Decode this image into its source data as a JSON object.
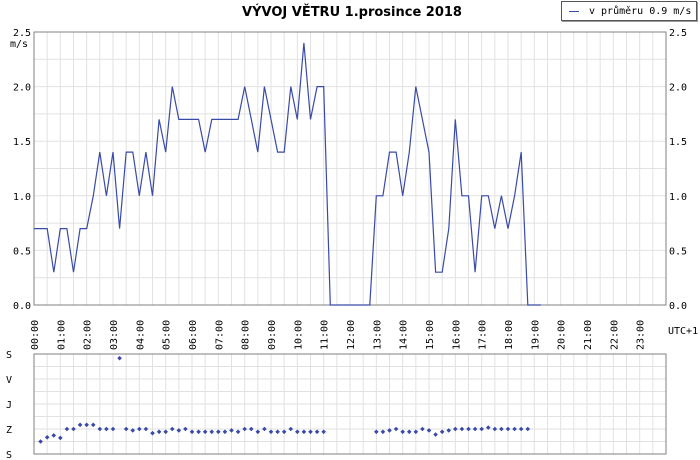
{
  "chart_data": [
    {
      "type": "line",
      "title": "VÝVOJ VĚTRU  1.prosince 2018",
      "ylabel": "m/s",
      "xlabel": "UTC+1",
      "ylim": [
        0,
        2.5
      ],
      "yticks": [
        "0.0",
        "0.5",
        "1.0",
        "1.5",
        "2.0",
        "2.5"
      ],
      "grid": true,
      "legend": "top-right",
      "categories": [
        "00:00",
        "01:00",
        "02:00",
        "03:00",
        "04:00",
        "05:00",
        "06:00",
        "07:00",
        "08:00",
        "09:00",
        "10:00",
        "11:00",
        "12:00",
        "13:00",
        "14:00",
        "15:00",
        "16:00",
        "17:00",
        "18:00",
        "19:00",
        "20:00",
        "21:00",
        "22:00",
        "23:00"
      ],
      "series": [
        {
          "name": "v průměru 0.9 m/s",
          "color": "#3a4aa8",
          "x": [
            0,
            0.5,
            0.75,
            1,
            1.25,
            1.5,
            1.75,
            2,
            2.25,
            2.5,
            2.75,
            3,
            3.25,
            3.5,
            3.75,
            4,
            4.25,
            4.5,
            4.75,
            5,
            5.25,
            5.5,
            5.75,
            6,
            6.25,
            6.5,
            6.75,
            7,
            7.25,
            7.5,
            7.75,
            8,
            8.25,
            8.5,
            8.75,
            9,
            9.25,
            9.5,
            9.75,
            10,
            10.25,
            10.5,
            10.75,
            11,
            11.25,
            12.75,
            13,
            13.25,
            13.5,
            13.75,
            14,
            14.25,
            14.5,
            14.75,
            15,
            15.25,
            15.5,
            15.75,
            16,
            16.25,
            16.5,
            16.75,
            17,
            17.25,
            17.5,
            17.75,
            18,
            18.25,
            18.5,
            18.75,
            19,
            19.25
          ],
          "y": [
            0.7,
            0.7,
            0.3,
            0.7,
            0.7,
            0.3,
            0.7,
            0.7,
            1.0,
            1.4,
            1.0,
            1.4,
            0.7,
            1.4,
            1.4,
            1.0,
            1.4,
            1.0,
            1.7,
            1.4,
            2.0,
            1.7,
            1.7,
            1.7,
            1.7,
            1.4,
            1.7,
            1.7,
            1.7,
            1.7,
            1.7,
            2.0,
            1.7,
            1.4,
            2.0,
            1.7,
            1.4,
            1.4,
            2.0,
            1.7,
            2.4,
            1.7,
            2.0,
            2.0,
            0.0,
            0.0,
            1.0,
            1.0,
            1.4,
            1.4,
            1.0,
            1.4,
            2.0,
            1.7,
            1.4,
            0.3,
            0.3,
            0.7,
            1.7,
            1.0,
            1.0,
            0.3,
            1.0,
            1.0,
            0.7,
            1.0,
            0.7,
            1.0,
            1.4,
            0.0,
            0.0,
            0.0
          ]
        }
      ]
    },
    {
      "type": "scatter",
      "title": "",
      "ylabel": "",
      "categories_y": [
        "S",
        "V",
        "J",
        "Z",
        "S"
      ],
      "grid": true,
      "series": [
        {
          "name": "",
          "color": "#3a4aa8",
          "x": [
            0.25,
            0.5,
            0.75,
            1,
            1.25,
            1.5,
            1.75,
            2,
            2.25,
            2.5,
            2.75,
            3,
            3.25,
            3.5,
            3.75,
            4,
            4.25,
            4.5,
            4.75,
            5,
            5.25,
            5.5,
            5.75,
            6,
            6.25,
            6.5,
            6.75,
            7,
            7.25,
            7.5,
            7.75,
            8,
            8.25,
            8.5,
            8.75,
            9,
            9.25,
            9.5,
            9.75,
            10,
            10.25,
            10.5,
            10.75,
            11,
            13,
            13.25,
            13.5,
            13.75,
            14,
            14.25,
            14.5,
            14.75,
            15,
            15.25,
            15.5,
            15.75,
            16,
            16.25,
            16.5,
            16.75,
            17,
            17.25,
            17.5,
            17.75,
            18,
            18.25,
            18.5,
            18.75
          ],
          "y": [
            315,
            300,
            293,
            302,
            270,
            270,
            255,
            255,
            255,
            270,
            270,
            270,
            15,
            270,
            275,
            270,
            270,
            285,
            280,
            280,
            270,
            275,
            270,
            280,
            280,
            280,
            280,
            280,
            280,
            275,
            280,
            270,
            270,
            280,
            270,
            280,
            280,
            280,
            270,
            280,
            280,
            280,
            280,
            280,
            280,
            280,
            275,
            270,
            280,
            280,
            280,
            270,
            275,
            290,
            280,
            275,
            270,
            270,
            270,
            270,
            270,
            265,
            270,
            270,
            270,
            270,
            270,
            270
          ]
        }
      ]
    }
  ],
  "legend": {
    "label": "v průměru 0.9 m/s"
  }
}
